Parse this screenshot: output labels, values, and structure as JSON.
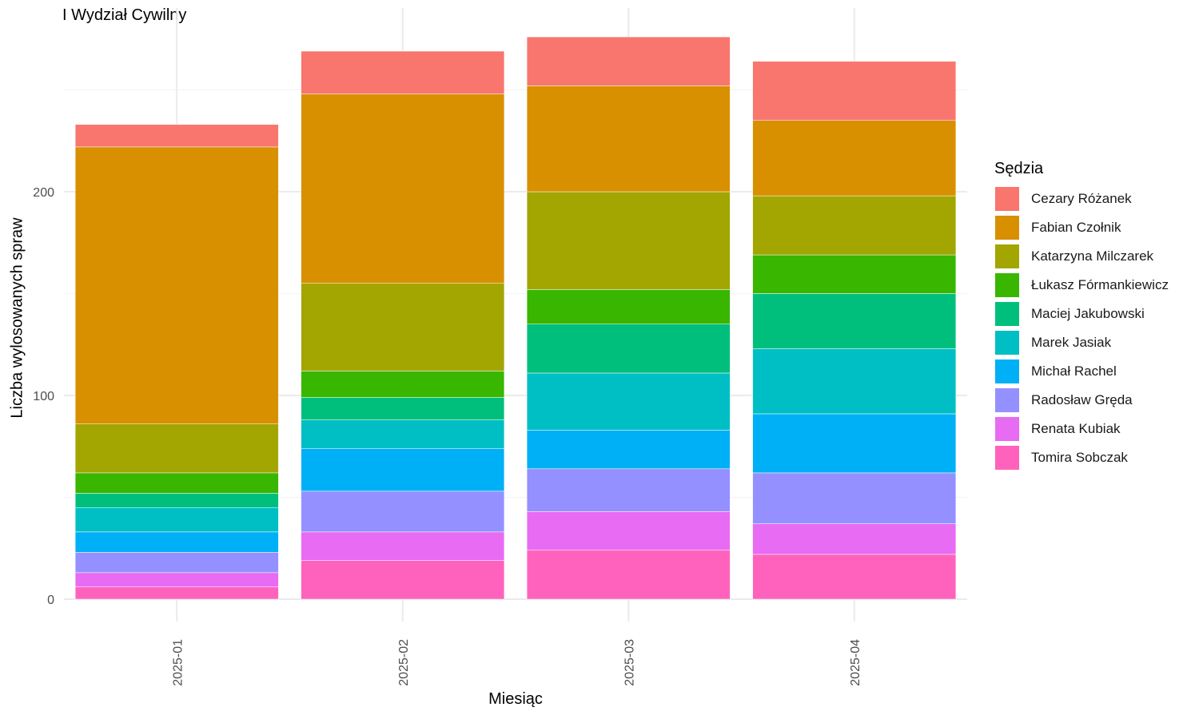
{
  "chart_data": {
    "type": "bar",
    "stacked": true,
    "title": "I Wydział Cywilny",
    "xlabel": "Miesiąc",
    "ylabel": "Liczba wylosowanych spraw",
    "ylim": [
      0,
      290
    ],
    "yticks": [
      0,
      100,
      200
    ],
    "grid": true,
    "legend_title": "Sędzia",
    "legend_position": "right",
    "categories": [
      "2025-01",
      "2025-02",
      "2025-03",
      "2025-04"
    ],
    "series": [
      {
        "name": "Cezary Różanek",
        "color": "#F8766D",
        "values": [
          11,
          21,
          24,
          29
        ]
      },
      {
        "name": "Fabian Czołnik",
        "color": "#D89000",
        "values": [
          136,
          93,
          52,
          37
        ]
      },
      {
        "name": "Katarzyna Milczarek",
        "color": "#A3A500",
        "values": [
          24,
          43,
          48,
          29
        ]
      },
      {
        "name": "Łukasz Fórmankiewicz",
        "color": "#39B600",
        "values": [
          10,
          13,
          17,
          19
        ]
      },
      {
        "name": "Maciej Jakubowski",
        "color": "#00BF7D",
        "values": [
          7,
          11,
          24,
          27
        ]
      },
      {
        "name": "Marek Jasiak",
        "color": "#00BFC4",
        "values": [
          12,
          14,
          28,
          32
        ]
      },
      {
        "name": "Michał Rachel",
        "color": "#00B0F6",
        "values": [
          10,
          21,
          19,
          29
        ]
      },
      {
        "name": "Radosław Gręda",
        "color": "#9590FF",
        "values": [
          10,
          20,
          21,
          25
        ]
      },
      {
        "name": "Renata Kubiak",
        "color": "#E76BF3",
        "values": [
          7,
          14,
          19,
          15
        ]
      },
      {
        "name": "Tomira Sobczak",
        "color": "#FF62BC",
        "values": [
          6,
          19,
          24,
          22
        ]
      }
    ]
  }
}
